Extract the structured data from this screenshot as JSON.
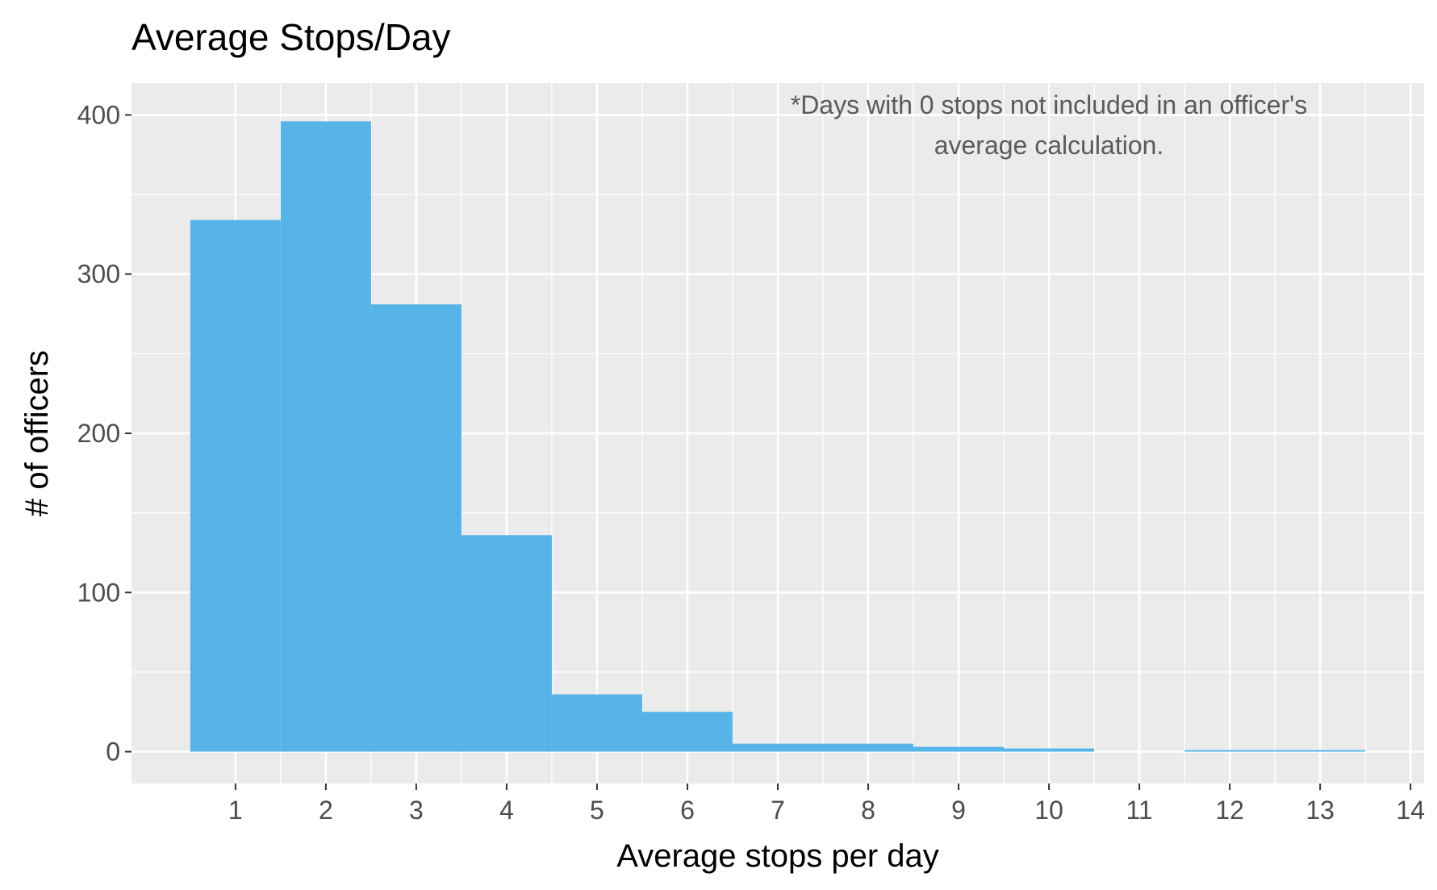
{
  "chart_data": {
    "type": "bar",
    "title": "Average Stops/Day",
    "xlabel": "Average stops per day",
    "ylabel": "# of officers",
    "annotation": [
      "*Days with 0 stops not included in an officer's",
      "average calculation."
    ],
    "x_ticks": [
      1,
      2,
      3,
      4,
      5,
      6,
      7,
      8,
      9,
      10,
      11,
      12,
      13,
      14
    ],
    "y_ticks": [
      0,
      100,
      200,
      300,
      400
    ],
    "xlim": [
      -0.15,
      14.15
    ],
    "ylim": [
      -20,
      420
    ],
    "bin_width": 1,
    "bins": [
      {
        "x": 1,
        "value": 334
      },
      {
        "x": 2,
        "value": 396
      },
      {
        "x": 3,
        "value": 281
      },
      {
        "x": 4,
        "value": 136
      },
      {
        "x": 5,
        "value": 36
      },
      {
        "x": 6,
        "value": 25
      },
      {
        "x": 7,
        "value": 5
      },
      {
        "x": 8,
        "value": 5
      },
      {
        "x": 9,
        "value": 3
      },
      {
        "x": 10,
        "value": 2
      },
      {
        "x": 11,
        "value": 0
      },
      {
        "x": 12,
        "value": 1
      },
      {
        "x": 13,
        "value": 1
      }
    ],
    "bar_color": "#56B4E9",
    "panel_background": "#EBEBEB",
    "grid": true,
    "legend": "none"
  }
}
